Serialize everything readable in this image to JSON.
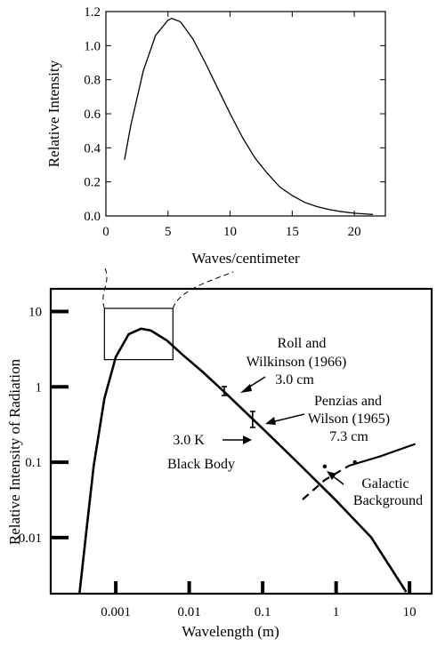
{
  "chart_data": [
    {
      "type": "line",
      "xlabel": "Waves/centimeter",
      "ylabel": "Relative Intensity",
      "xlim": [
        0,
        22.5
      ],
      "ylim": [
        0,
        1.2
      ],
      "xticks": [
        0,
        5,
        10,
        15,
        20
      ],
      "yticks": [
        0.0,
        0.2,
        0.4,
        0.6,
        0.8,
        1.0,
        1.2
      ],
      "ytick_labels": [
        "0.0",
        "0.2",
        "0.4",
        "0.6",
        "0.8",
        "1.0",
        "1.2"
      ],
      "grid": false,
      "series": [
        {
          "x": [
            1.5,
            2,
            3,
            4,
            5,
            5.3,
            6,
            7,
            8,
            9,
            10,
            11,
            12,
            13,
            14,
            15,
            16,
            17,
            18,
            19,
            20,
            21,
            21.5
          ],
          "y": [
            0.33,
            0.53,
            0.85,
            1.06,
            1.15,
            1.16,
            1.14,
            1.04,
            0.9,
            0.75,
            0.6,
            0.46,
            0.34,
            0.25,
            0.17,
            0.12,
            0.08,
            0.055,
            0.037,
            0.025,
            0.016,
            0.011,
            0.009
          ]
        }
      ]
    },
    {
      "type": "line",
      "xlabel": "Wavelength (m)",
      "ylabel": "Relative Intensity of Radiation",
      "xscale": "log",
      "yscale": "log",
      "xlim": [
        0.00013,
        20
      ],
      "ylim": [
        0.0018,
        20
      ],
      "xticks": [
        0.001,
        0.01,
        0.1,
        1,
        10
      ],
      "xtick_labels": [
        "0.001",
        "0.01",
        "0.1",
        "1",
        "10"
      ],
      "yticks": [
        0.01,
        0.1,
        1,
        10
      ],
      "ytick_labels": [
        "0.01",
        "0.1",
        "1",
        "10"
      ],
      "grid": false,
      "series": [
        {
          "name": "3.0 K Black Body",
          "x": [
            0.00032,
            0.0004,
            0.0005,
            0.0007,
            0.001,
            0.0015,
            0.0022,
            0.003,
            0.005,
            0.008,
            0.015,
            0.03,
            0.06,
            0.1,
            0.3,
            1,
            3,
            9
          ],
          "y": [
            0.0018,
            0.013,
            0.09,
            0.7,
            2.5,
            5.0,
            5.9,
            5.6,
            4.1,
            2.7,
            1.6,
            0.86,
            0.45,
            0.28,
            0.099,
            0.031,
            0.0101,
            0.0019
          ]
        },
        {
          "name": "Galactic Background",
          "x": [
            0.35,
            0.7,
            1.5,
            4,
            12
          ],
          "y": [
            0.032,
            0.058,
            0.09,
            0.12,
            0.175
          ]
        }
      ],
      "measurements": [
        {
          "label": "Roll and Wilkinson (1966) 3.0 cm",
          "x": 0.03,
          "y": 0.88
        },
        {
          "label": "Penzias and Wilson (1965) 7.3 cm",
          "x": 0.073,
          "y": 0.37
        }
      ],
      "annotations": {
        "roll_line1": "Roll and",
        "roll_line2": "Wilkinson (1966)",
        "roll_line3": "3.0 cm",
        "penzias_line1": "Penzias and",
        "penzias_line2": "Wilson (1965)",
        "penzias_line3": "7.3 cm",
        "blackbody_line1": "3.0 K",
        "blackbody_line2": "Black Body",
        "galactic_line1": "Galactic",
        "galactic_line2": "Background"
      },
      "inset_box": {
        "x_range": [
          0.0007,
          0.006
        ],
        "y_range": [
          2.3,
          11
        ]
      }
    }
  ]
}
